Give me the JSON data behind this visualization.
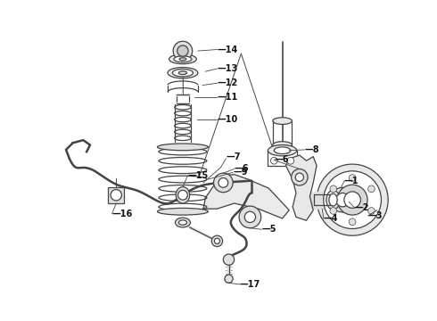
{
  "bg_color": "#ffffff",
  "lc": "#444444",
  "lw": 0.9,
  "figsize": [
    4.9,
    3.6
  ],
  "dpi": 100,
  "xlim": [
    0,
    490
  ],
  "ylim": [
    0,
    360
  ]
}
